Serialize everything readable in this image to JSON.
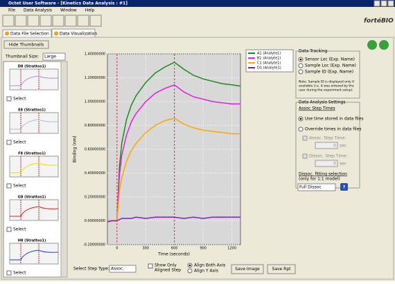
{
  "window": {
    "title": "Octet User Software - [Kinetics Data Analysis : #1]",
    "menu": [
      "File",
      "Data Analysis",
      "Window",
      "Help"
    ]
  },
  "logo": "fortéBIO",
  "tabs": [
    "Data File Selection",
    "Data Visualization"
  ],
  "hide_thumbnails": "Hide Thumbnails",
  "thumbnail_size": {
    "label": "Thumbnail Size:",
    "value": "Large"
  },
  "thumbnails": [
    {
      "title": "D8 (Strattos1)",
      "select": "Select",
      "color": "#b090d0"
    },
    {
      "title": "E8 (Strattos1)",
      "select": "Select",
      "color": "#a8c0d8"
    },
    {
      "title": "F8 (Strattos1)",
      "select": "Select",
      "color": "#e8e000"
    },
    {
      "title": "G8 (Strattos1)",
      "select": "Select",
      "color": "#e02020"
    },
    {
      "title": "H8 (Strattos1)",
      "select": "Select",
      "color": "#2040e0"
    }
  ],
  "chart_data": {
    "type": "line",
    "xlabel": "Time (seconds)",
    "ylabel": "Binding (nm)",
    "x": [
      -100,
      -50,
      0,
      25,
      50,
      100,
      150,
      200,
      300,
      400,
      500,
      600,
      700,
      800,
      900,
      1000,
      1100,
      1200,
      1290
    ],
    "series": [
      {
        "name": "A1 (Analyte1)",
        "color": "#1a8a1a",
        "values": [
          0,
          0,
          0,
          0.45,
          0.65,
          0.85,
          0.97,
          1.05,
          1.16,
          1.24,
          1.29,
          1.33,
          1.27,
          1.22,
          1.19,
          1.17,
          1.15,
          1.14,
          1.13
        ]
      },
      {
        "name": "B1 (Analyte1)",
        "color": "#e020e0",
        "values": [
          0,
          0,
          0,
          0.38,
          0.55,
          0.72,
          0.83,
          0.9,
          1.0,
          1.07,
          1.11,
          1.14,
          1.08,
          1.04,
          1.02,
          1.0,
          0.99,
          0.98,
          0.98
        ]
      },
      {
        "name": "C1 (Analyte1)",
        "color": "#ffa500",
        "values": [
          0,
          0,
          0,
          0.25,
          0.36,
          0.5,
          0.59,
          0.65,
          0.74,
          0.8,
          0.84,
          0.86,
          0.81,
          0.78,
          0.76,
          0.75,
          0.74,
          0.73,
          0.73
        ]
      },
      {
        "name": "D1 (Analyte1)",
        "color": "#8020c0",
        "values": [
          -0.01,
          0,
          0,
          0.01,
          0.02,
          0.02,
          0.02,
          0.03,
          0.02,
          0.03,
          0.03,
          0.03,
          0.02,
          0.03,
          0.02,
          0.03,
          0.03,
          0.03,
          0.03
        ]
      }
    ],
    "xlim": [
      -100,
      1290
    ],
    "ylim": [
      -0.2,
      1.4
    ],
    "xticks": [
      0,
      300,
      600,
      900,
      1200
    ],
    "yticks": [
      {
        "value": -0.2,
        "label": "-0.20000000"
      },
      {
        "value": 0,
        "label": "0.00000000"
      },
      {
        "value": 0.2,
        "label": "0.20000000"
      },
      {
        "value": 0.4,
        "label": "0.40000000"
      },
      {
        "value": 0.6,
        "label": "0.60000000"
      },
      {
        "value": 0.8,
        "label": "0.80000000"
      },
      {
        "value": 1.0,
        "label": "1.00000000"
      },
      {
        "value": 1.2,
        "label": "1.20000000"
      },
      {
        "value": 1.4,
        "label": "1.40000000"
      }
    ],
    "step_lines": [
      0,
      600
    ],
    "grid": true
  },
  "data_tracking": {
    "title": "Data Tracking",
    "options": [
      "Sensor Loc (Exp. Name)",
      "Sample Loc (Exp. Name)",
      "Sample ID (Exp. Name)"
    ],
    "note": [
      "Note: Sample ID is displayed only if",
      "available (i.e. it was entered by the",
      "user during the experiment setup)"
    ]
  },
  "analysis_settings": {
    "title": "Data Analysis Settings",
    "assoc_heading": "Assoc Step Times",
    "options": [
      "Use time stored in data files",
      "Override times in data files"
    ],
    "assoc_label": "Assoc. Step Time:",
    "assoc_value": "0",
    "dissoc_label": "Dissoc. Step Time:",
    "dissoc_value": "0",
    "unit": "sec",
    "fit_label": [
      "Dissoc. fitting selection",
      "(only for 1:1 model)"
    ],
    "fit_value": "Full Dissoc",
    "help": "?"
  },
  "bottom": {
    "step_type_label": "Select Step Type:",
    "step_type_value": "Assoc.",
    "show_only": [
      "Show Only",
      "Aligned Step"
    ],
    "align": [
      "Align Both Axis",
      "Align Y Axis"
    ],
    "save_image": "Save Image",
    "save_rpt": "Save Rpt"
  }
}
